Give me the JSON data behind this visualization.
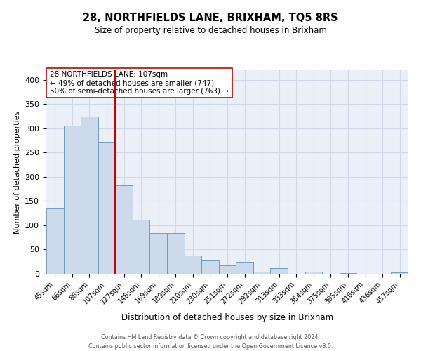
{
  "title": "28, NORTHFIELDS LANE, BRIXHAM, TQ5 8RS",
  "subtitle": "Size of property relative to detached houses in Brixham",
  "xlabel": "Distribution of detached houses by size in Brixham",
  "ylabel": "Number of detached properties",
  "bar_labels": [
    "45sqm",
    "66sqm",
    "86sqm",
    "107sqm",
    "127sqm",
    "148sqm",
    "169sqm",
    "189sqm",
    "210sqm",
    "230sqm",
    "251sqm",
    "272sqm",
    "292sqm",
    "313sqm",
    "333sqm",
    "354sqm",
    "375sqm",
    "395sqm",
    "416sqm",
    "436sqm",
    "457sqm"
  ],
  "bar_values": [
    135,
    305,
    325,
    273,
    183,
    112,
    84,
    84,
    38,
    27,
    18,
    25,
    5,
    11,
    0,
    5,
    0,
    2,
    0,
    0,
    3
  ],
  "bar_color": "#ccdaec",
  "bar_edge_color": "#6a9fc0",
  "vline_x": 3.5,
  "vline_color": "#cc0000",
  "annotation_text": "28 NORTHFIELDS LANE: 107sqm\n← 49% of detached houses are smaller (747)\n50% of semi-detached houses are larger (763) →",
  "annotation_box_edge": "#cc0000",
  "ylim": [
    0,
    420
  ],
  "yticks": [
    0,
    50,
    100,
    150,
    200,
    250,
    300,
    350,
    400
  ],
  "grid_color": "#d0d8e8",
  "bg_color": "#eaeff8",
  "footer_line1": "Contains HM Land Registry data © Crown copyright and database right 2024.",
  "footer_line2": "Contains public sector information licensed under the Open Government Licence v3.0."
}
